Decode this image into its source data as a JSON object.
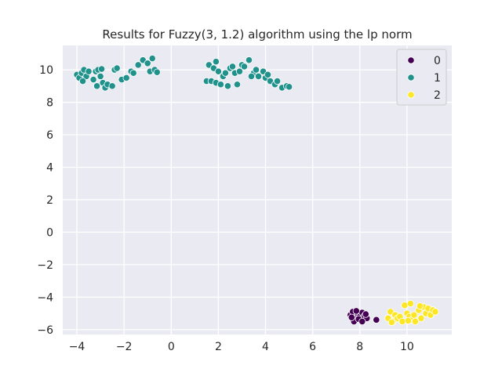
{
  "chart_data": {
    "type": "scatter",
    "title": "Results for Fuzzy(3, 1.2) algorithm using the lp norm",
    "xlabel": "",
    "ylabel": "",
    "xlim": [
      -4.6,
      11.9
    ],
    "ylim": [
      -6.3,
      11.5
    ],
    "xticks": [
      -4,
      -2,
      0,
      2,
      4,
      6,
      8,
      10
    ],
    "yticks": [
      -6,
      -4,
      -2,
      0,
      2,
      4,
      6,
      8,
      10
    ],
    "xtick_labels": [
      "−4",
      "−2",
      "0",
      "2",
      "4",
      "6",
      "8",
      "10"
    ],
    "ytick_labels": [
      "−6",
      "−4",
      "−2",
      "0",
      "2",
      "4",
      "6",
      "8",
      "10"
    ],
    "grid": true,
    "legend_position": "top-right",
    "series": [
      {
        "name": "0",
        "color": "#440154",
        "points": [
          [
            7.6,
            -5.1
          ],
          [
            7.7,
            -4.9
          ],
          [
            7.8,
            -5.3
          ],
          [
            7.9,
            -5.0
          ],
          [
            8.0,
            -5.2
          ],
          [
            8.1,
            -4.95
          ],
          [
            7.75,
            -5.5
          ],
          [
            8.2,
            -5.15
          ],
          [
            7.95,
            -5.35
          ],
          [
            8.3,
            -5.3
          ],
          [
            8.1,
            -5.5
          ],
          [
            7.85,
            -4.85
          ],
          [
            8.7,
            -5.4
          ],
          [
            7.65,
            -5.25
          ],
          [
            8.25,
            -5.05
          ]
        ]
      },
      {
        "name": "1",
        "color": "#21918c",
        "points": [
          [
            -4.0,
            9.7
          ],
          [
            -3.9,
            9.5
          ],
          [
            -3.8,
            9.8
          ],
          [
            -3.7,
            10.0
          ],
          [
            -3.6,
            9.6
          ],
          [
            -3.5,
            9.9
          ],
          [
            -3.3,
            9.4
          ],
          [
            -3.2,
            9.9
          ],
          [
            -3.1,
            10.0
          ],
          [
            -3.0,
            9.6
          ],
          [
            -2.9,
            9.2
          ],
          [
            -2.8,
            8.9
          ],
          [
            -2.7,
            9.1
          ],
          [
            -3.15,
            9.0
          ],
          [
            -2.5,
            9.0
          ],
          [
            -2.4,
            10.0
          ],
          [
            -2.3,
            10.1
          ],
          [
            -2.1,
            9.4
          ],
          [
            -1.9,
            9.5
          ],
          [
            -1.7,
            9.9
          ],
          [
            -1.6,
            9.8
          ],
          [
            -1.4,
            10.3
          ],
          [
            -1.2,
            10.6
          ],
          [
            -1.0,
            10.4
          ],
          [
            -0.9,
            9.9
          ],
          [
            -0.8,
            10.7
          ],
          [
            -0.7,
            10.0
          ],
          [
            -0.6,
            9.85
          ],
          [
            -3.75,
            9.3
          ],
          [
            -2.95,
            10.05
          ],
          [
            1.5,
            9.3
          ],
          [
            1.6,
            10.3
          ],
          [
            1.7,
            9.3
          ],
          [
            1.8,
            10.1
          ],
          [
            1.9,
            9.2
          ],
          [
            2.0,
            9.9
          ],
          [
            2.1,
            9.1
          ],
          [
            2.2,
            9.6
          ],
          [
            2.3,
            9.8
          ],
          [
            2.4,
            9.0
          ],
          [
            2.5,
            10.1
          ],
          [
            2.6,
            10.2
          ],
          [
            2.7,
            9.8
          ],
          [
            2.8,
            9.1
          ],
          [
            2.9,
            9.9
          ],
          [
            3.0,
            10.3
          ],
          [
            3.1,
            10.2
          ],
          [
            3.3,
            10.6
          ],
          [
            3.5,
            9.8
          ],
          [
            3.6,
            10.0
          ],
          [
            3.7,
            9.6
          ],
          [
            3.9,
            9.9
          ],
          [
            4.0,
            9.5
          ],
          [
            4.1,
            9.7
          ],
          [
            4.2,
            9.3
          ],
          [
            4.4,
            9.1
          ],
          [
            4.5,
            9.3
          ],
          [
            4.7,
            8.9
          ],
          [
            4.9,
            9.0
          ],
          [
            5.0,
            8.95
          ],
          [
            1.9,
            10.5
          ],
          [
            3.4,
            9.6
          ]
        ]
      },
      {
        "name": "2",
        "color": "#fde725",
        "points": [
          [
            9.2,
            -5.3
          ],
          [
            9.3,
            -4.9
          ],
          [
            9.4,
            -5.5
          ],
          [
            9.5,
            -5.1
          ],
          [
            9.6,
            -5.3
          ],
          [
            9.7,
            -5.2
          ],
          [
            9.8,
            -5.5
          ],
          [
            9.9,
            -4.5
          ],
          [
            10.0,
            -5.0
          ],
          [
            10.1,
            -5.2
          ],
          [
            10.15,
            -4.4
          ],
          [
            10.2,
            -5.4
          ],
          [
            10.3,
            -5.1
          ],
          [
            10.35,
            -5.5
          ],
          [
            10.5,
            -4.8
          ],
          [
            10.6,
            -5.3
          ],
          [
            10.7,
            -4.6
          ],
          [
            10.8,
            -5.0
          ],
          [
            10.9,
            -4.7
          ],
          [
            11.0,
            -5.1
          ],
          [
            11.1,
            -4.8
          ],
          [
            11.2,
            -4.9
          ],
          [
            10.55,
            -4.55
          ],
          [
            9.35,
            -5.55
          ],
          [
            10.05,
            -5.45
          ]
        ]
      }
    ]
  }
}
